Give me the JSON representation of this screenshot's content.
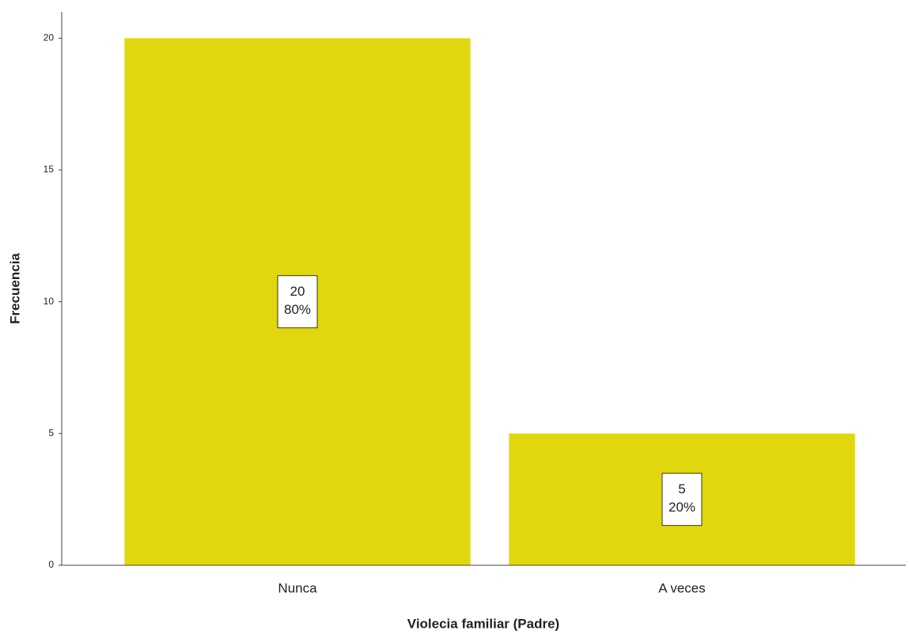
{
  "chart_data": {
    "type": "bar",
    "x_label": "Violecia familiar (Padre)",
    "y_label": "Frecuencia",
    "categories": [
      "Nunca",
      "A veces"
    ],
    "values": [
      20,
      5
    ],
    "percentages": {
      "values": [
        80,
        20
      ],
      "value_labels": [
        "80%",
        "20%"
      ]
    },
    "color": "#e1d70e",
    "ylim": [
      0,
      21
    ],
    "yticks": [
      0,
      5,
      10,
      15,
      20
    ],
    "grid": false
  }
}
